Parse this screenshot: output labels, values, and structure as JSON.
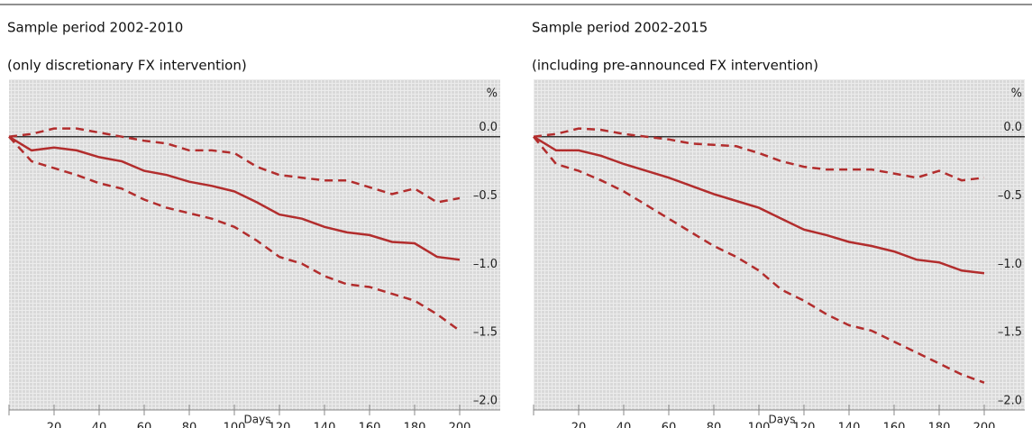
{
  "chart_data": [
    {
      "type": "line",
      "title": "Sample period 2002-2010",
      "subtitle": "(only discretionary FX intervention)",
      "x_label": "Days",
      "y_unit": "%",
      "x": [
        0,
        10,
        20,
        30,
        40,
        50,
        60,
        70,
        80,
        90,
        100,
        110,
        120,
        130,
        140,
        150,
        160,
        170,
        180,
        190,
        200
      ],
      "series": [
        {
          "color": "#b22d2d",
          "line_style": "solid",
          "values": [
            0,
            -0.1,
            -0.08,
            -0.1,
            -0.15,
            -0.18,
            -0.25,
            -0.28,
            -0.33,
            -0.36,
            -0.4,
            -0.48,
            -0.57,
            -0.6,
            -0.66,
            -0.7,
            -0.72,
            -0.77,
            -0.78,
            -0.88,
            -0.9
          ]
        },
        {
          "color": "#b22d2d",
          "line_style": "dashed",
          "values": [
            0,
            0.02,
            0.06,
            0.06,
            0.03,
            0,
            -0.03,
            -0.05,
            -0.1,
            -0.1,
            -0.12,
            -0.22,
            -0.28,
            -0.3,
            -0.32,
            -0.32,
            -0.37,
            -0.42,
            -0.38,
            -0.48,
            -0.45
          ]
        },
        {
          "color": "#b22d2d",
          "line_style": "dashed",
          "values": [
            0,
            -0.18,
            -0.23,
            -0.28,
            -0.34,
            -0.38,
            -0.46,
            -0.52,
            -0.56,
            -0.6,
            -0.66,
            -0.76,
            -0.88,
            -0.93,
            -1.02,
            -1.08,
            -1.1,
            -1.15,
            -1.2,
            -1.3,
            -1.42
          ]
        }
      ],
      "xlim": [
        0,
        218
      ],
      "xticks": [
        20,
        40,
        60,
        80,
        100,
        120,
        140,
        160,
        180,
        200
      ],
      "ylim": [
        -2.0,
        0.42
      ],
      "yticks": [
        {
          "value": 0,
          "label": "0.0"
        },
        {
          "value": -0.5,
          "label": "–0.5"
        },
        {
          "value": -1,
          "label": "–1.0"
        },
        {
          "value": -1.5,
          "label": "–1.5"
        },
        {
          "value": -2,
          "label": "–2.0"
        }
      ]
    },
    {
      "type": "line",
      "title": "Sample period 2002-2015",
      "subtitle": "(including pre-announced FX intervention)",
      "x_label": "Days",
      "y_unit": "%",
      "x": [
        0,
        10,
        20,
        30,
        40,
        50,
        60,
        70,
        80,
        90,
        100,
        110,
        120,
        130,
        140,
        150,
        160,
        170,
        180,
        190,
        200
      ],
      "series": [
        {
          "color": "#b22d2d",
          "line_style": "solid",
          "values": [
            0,
            -0.1,
            -0.1,
            -0.14,
            -0.2,
            -0.25,
            -0.3,
            -0.36,
            -0.42,
            -0.47,
            -0.52,
            -0.6,
            -0.68,
            -0.72,
            -0.77,
            -0.8,
            -0.84,
            -0.9,
            -0.92,
            -0.98,
            -1.0
          ]
        },
        {
          "color": "#b22d2d",
          "line_style": "dashed",
          "values": [
            0,
            0.02,
            0.06,
            0.05,
            0.02,
            0,
            -0.02,
            -0.05,
            -0.06,
            -0.07,
            -0.12,
            -0.18,
            -0.22,
            -0.24,
            -0.24,
            -0.24,
            -0.27,
            -0.3,
            -0.25,
            -0.32,
            -0.3
          ]
        },
        {
          "color": "#b22d2d",
          "line_style": "dashed",
          "values": [
            0,
            -0.2,
            -0.25,
            -0.32,
            -0.4,
            -0.5,
            -0.6,
            -0.7,
            -0.8,
            -0.88,
            -0.98,
            -1.12,
            -1.2,
            -1.3,
            -1.38,
            -1.42,
            -1.5,
            -1.58,
            -1.66,
            -1.74,
            -1.8
          ]
        }
      ],
      "xlim": [
        0,
        218
      ],
      "xticks": [
        20,
        40,
        60,
        80,
        100,
        120,
        140,
        160,
        180,
        200
      ],
      "ylim": [
        -2.0,
        0.42
      ],
      "yticks": [
        {
          "value": 0,
          "label": "0.0"
        },
        {
          "value": -0.5,
          "label": "–0.5"
        },
        {
          "value": -1,
          "label": "–1.0"
        },
        {
          "value": -1.5,
          "label": "–1.5"
        },
        {
          "value": -2,
          "label": "–2.0"
        }
      ]
    }
  ]
}
